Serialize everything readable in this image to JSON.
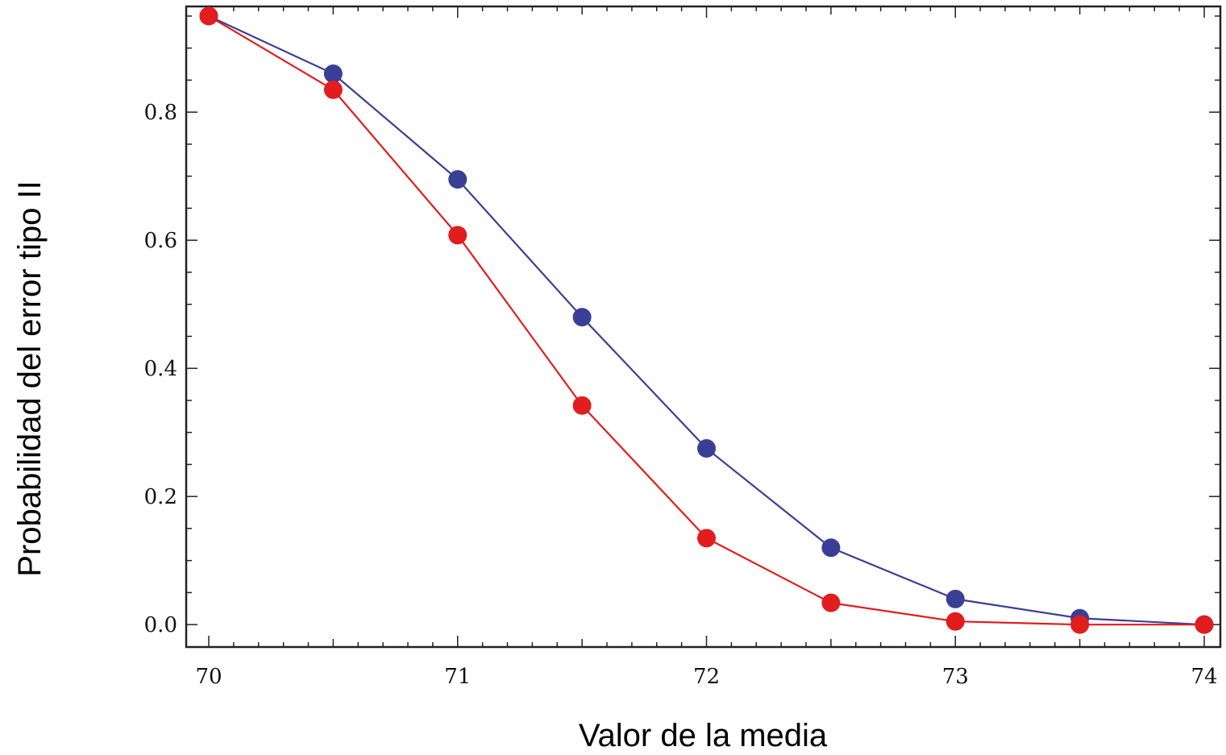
{
  "chart_data": {
    "type": "line",
    "xlabel": "Valor de la media",
    "ylabel": "Probabilidad del error tipo II",
    "xlim": [
      70,
      74
    ],
    "ylim": [
      -0.035,
      0.965
    ],
    "x_ticks": [
      "70",
      "71",
      "72",
      "73",
      "74"
    ],
    "y_ticks": [
      "0.0",
      "0.2",
      "0.4",
      "0.6",
      "0.8"
    ],
    "x": [
      70,
      70.5,
      71,
      71.5,
      72,
      72.5,
      73,
      73.5,
      74
    ],
    "series": [
      {
        "color": "#3a3f96",
        "values": [
          0.95,
          0.86,
          0.695,
          0.48,
          0.275,
          0.12,
          0.04,
          0.01,
          0.0
        ]
      },
      {
        "color": "#e11d1d",
        "values": [
          0.95,
          0.835,
          0.608,
          0.342,
          0.135,
          0.034,
          0.005,
          0.0,
          0.0
        ]
      }
    ],
    "grid": false,
    "legend": "none"
  }
}
